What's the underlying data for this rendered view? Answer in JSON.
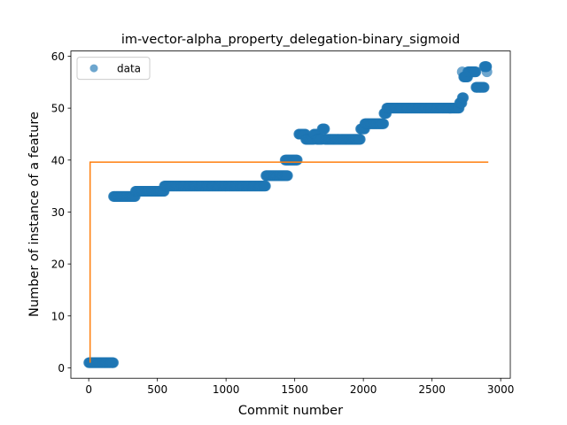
{
  "chart_data": {
    "type": "scatter",
    "title": "im-vector-alpha_property_delegation-binary_sigmoid",
    "xlabel": "Commit number",
    "ylabel": "Number of instance of a feature",
    "xlim": [
      -130,
      3070
    ],
    "ylim": [
      -2,
      61
    ],
    "x_ticks": [
      0,
      500,
      1000,
      1500,
      2000,
      2500,
      3000
    ],
    "y_ticks": [
      0,
      10,
      20,
      30,
      40,
      50,
      60
    ],
    "x_tick_labels": [
      "0",
      "500",
      "1000",
      "1500",
      "2000",
      "2500",
      "3000"
    ],
    "y_tick_labels": [
      "0",
      "10",
      "20",
      "30",
      "40",
      "50",
      "60"
    ],
    "grid": false,
    "legend": {
      "position": "top-left",
      "entries": [
        "data"
      ]
    },
    "colors": {
      "data": "#1f77b4",
      "fit": "#ff7f0e"
    },
    "series": [
      {
        "name": "data",
        "kind": "scatter",
        "alpha": 0.65,
        "segments": [
          {
            "x_start": 0,
            "x_end": 180,
            "y": 1
          },
          {
            "x_start": 180,
            "x_end": 340,
            "y": 33
          },
          {
            "x_start": 340,
            "x_end": 550,
            "y": 34
          },
          {
            "x_start": 550,
            "x_end": 1290,
            "y": 35
          },
          {
            "x_start": 1430,
            "x_end": 1450,
            "y": 40
          },
          {
            "x_start": 1290,
            "x_end": 1450,
            "y": 37
          },
          {
            "x_start": 1450,
            "x_end": 1520,
            "y": 40
          },
          {
            "x_start": 1530,
            "x_end": 1580,
            "y": 45
          },
          {
            "x_start": 1580,
            "x_end": 1640,
            "y": 44
          },
          {
            "x_start": 1640,
            "x_end": 1660,
            "y": 45
          },
          {
            "x_start": 1660,
            "x_end": 1700,
            "y": 44
          },
          {
            "x_start": 1700,
            "x_end": 1720,
            "y": 46
          },
          {
            "x_start": 1720,
            "x_end": 1980,
            "y": 44
          },
          {
            "x_start": 1980,
            "x_end": 2010,
            "y": 46
          },
          {
            "x_start": 2010,
            "x_end": 2150,
            "y": 47
          },
          {
            "x_start": 2150,
            "x_end": 2170,
            "y": 49
          },
          {
            "x_start": 2170,
            "x_end": 2700,
            "y": 50
          },
          {
            "x_start": 2700,
            "x_end": 2720,
            "y": 51
          },
          {
            "x_start": 2720,
            "x_end": 2730,
            "y": 52
          },
          {
            "x_start": 2730,
            "x_end": 2760,
            "y": 56
          },
          {
            "x_start": 2760,
            "x_end": 2820,
            "y": 57
          },
          {
            "x_start": 2820,
            "x_end": 2880,
            "y": 54
          },
          {
            "x_start": 2880,
            "x_end": 2900,
            "y": 58
          }
        ],
        "points": [
          [
            2720,
            57
          ],
          [
            2900,
            57
          ],
          [
            2895,
            58
          ],
          [
            2745,
            56
          ],
          [
            2825,
            54
          ],
          [
            2850,
            54
          ]
        ]
      },
      {
        "name": "",
        "kind": "line",
        "x": [
          10,
          10,
          2910
        ],
        "y": [
          1,
          39.6,
          39.6
        ]
      }
    ]
  }
}
